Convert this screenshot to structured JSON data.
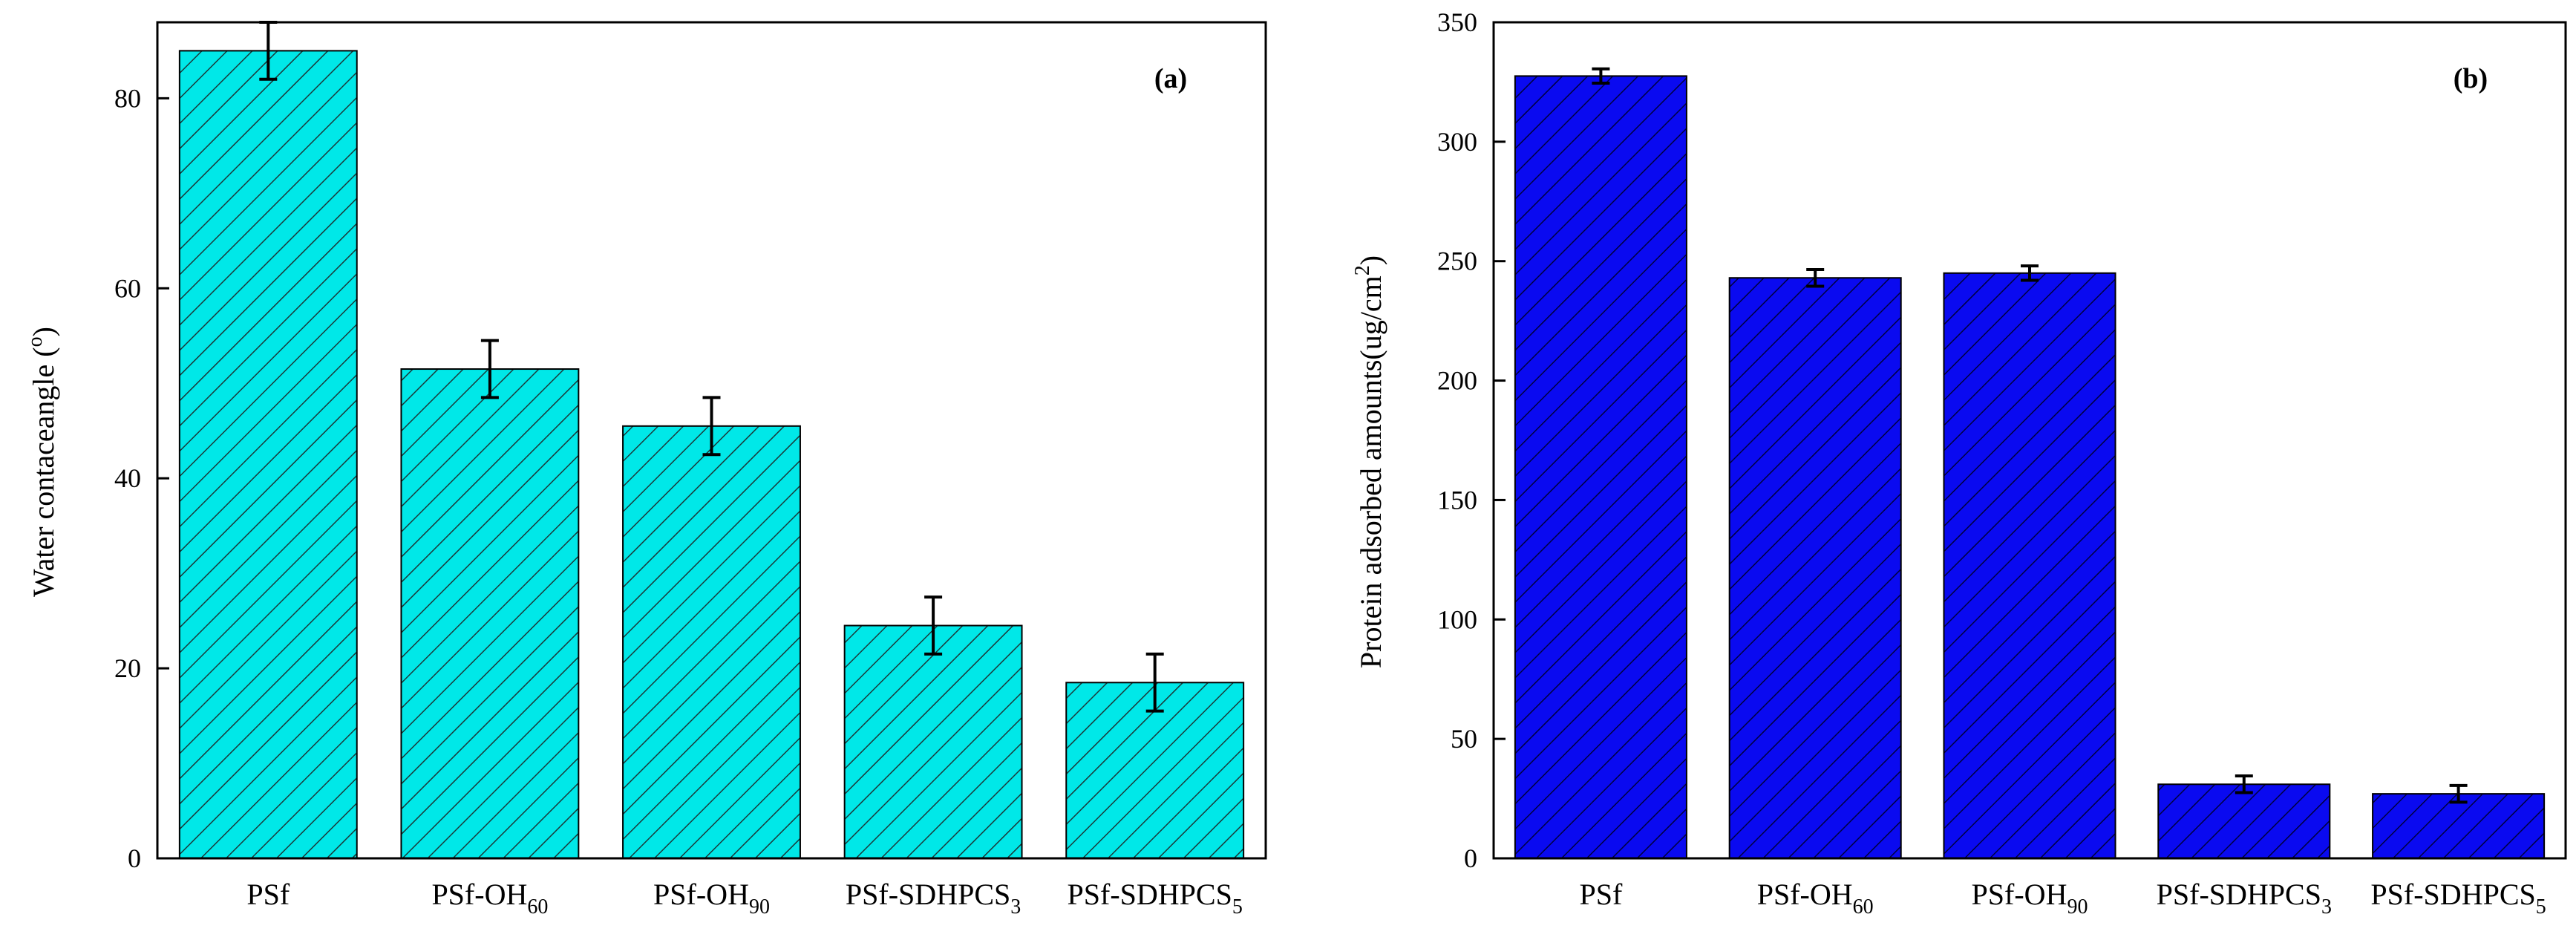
{
  "chart_data": [
    {
      "id": "a",
      "type": "bar",
      "panel_label": "(a)",
      "categories": [
        {
          "base": "PSf",
          "sub": ""
        },
        {
          "base": "PSf-OH",
          "sub": "60"
        },
        {
          "base": "PSf-OH",
          "sub": "90"
        },
        {
          "base": "PSf-SDHPCS",
          "sub": "3"
        },
        {
          "base": "PSf-SDHPCS",
          "sub": "5"
        }
      ],
      "values": [
        85,
        51.5,
        45.5,
        24.5,
        18.5
      ],
      "errors": [
        3,
        3,
        3,
        3,
        3
      ],
      "ylabel": "Water contaceangle",
      "ylabel_unit": "(",
      "ylabel_sup": "o",
      "ylabel_unit_close": ")",
      "ylim": [
        0,
        88
      ],
      "yticks": [
        0,
        20,
        40,
        60,
        80
      ],
      "bar_color": "#00e8e8",
      "hatch_color": "#1a3a3a",
      "xlabel": ""
    },
    {
      "id": "b",
      "type": "bar",
      "panel_label": "(b)",
      "categories": [
        {
          "base": "PSf",
          "sub": ""
        },
        {
          "base": "PSf-OH",
          "sub": "60"
        },
        {
          "base": "PSf-OH",
          "sub": "90"
        },
        {
          "base": "PSf-SDHPCS",
          "sub": "3"
        },
        {
          "base": "PSf-SDHPCS",
          "sub": "5"
        }
      ],
      "values": [
        327.5,
        243,
        245,
        31,
        27
      ],
      "errors": [
        3,
        3.5,
        3,
        3.5,
        3.5
      ],
      "ylabel": "Protein adsorbed amounts(ug/cm",
      "ylabel_sup": "2",
      "ylabel_unit_close": ")",
      "ylim": [
        0,
        350
      ],
      "yticks": [
        0,
        50,
        100,
        150,
        200,
        250,
        300,
        350
      ],
      "bar_color": "#0a0af0",
      "hatch_color": "#000040",
      "xlabel": ""
    }
  ]
}
